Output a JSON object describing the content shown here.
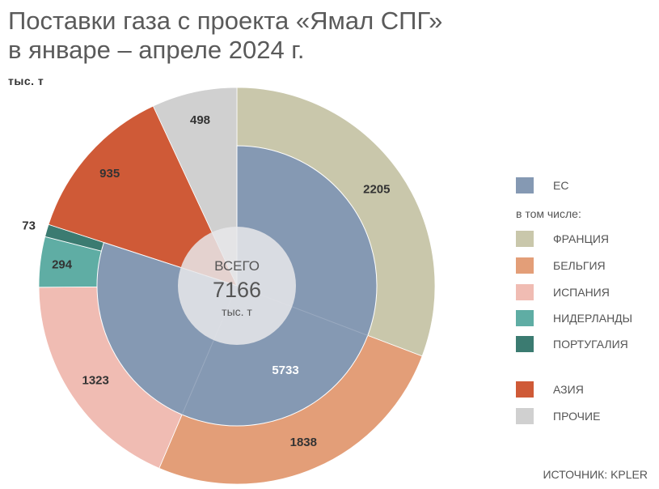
{
  "title_line1": "Поставки газа с проекта «Ямал СПГ»",
  "title_line2": "в январе – апреле 2024 г.",
  "unit": "тыс. т",
  "center": {
    "label_top": "ВСЕГО",
    "value": "7166",
    "label_bottom": "тыс. т"
  },
  "source": "ИСТОЧНИК: KPLER",
  "legend": {
    "eu": "ЕС",
    "subheading": "в том числе:",
    "items": [
      "ФРАНЦИЯ",
      "БЕЛЬГИЯ",
      "ИСПАНИЯ",
      "НИДЕРЛАНДЫ",
      "ПОРТУГАЛИЯ",
      "АЗИЯ",
      "ПРОЧИЕ"
    ]
  },
  "colors": {
    "eu": "#8599b3",
    "france": "#c9c7ab",
    "belgium": "#e39e78",
    "spain": "#f0bcb3",
    "netherlands": "#5fada4",
    "portugal": "#3b7b71",
    "asia": "#cf5a37",
    "other": "#d0d0d0",
    "center": "#e8e8ea"
  },
  "chart_data": {
    "type": "pie",
    "total": 7166,
    "inner": [
      {
        "name": "ЕС",
        "value": 5733,
        "color_key": "eu"
      }
    ],
    "outer": [
      {
        "name": "ФРАНЦИЯ",
        "value": 2205,
        "color_key": "france"
      },
      {
        "name": "БЕЛЬГИЯ",
        "value": 1838,
        "color_key": "belgium"
      },
      {
        "name": "ИСПАНИЯ",
        "value": 1323,
        "color_key": "spain"
      },
      {
        "name": "НИДЕРЛАНДЫ",
        "value": 294,
        "color_key": "netherlands"
      },
      {
        "name": "ПОРТУГАЛИЯ",
        "value": 73,
        "color_key": "portugal"
      },
      {
        "name": "АЗИЯ",
        "value": 935,
        "color_key": "asia"
      },
      {
        "name": "ПРОЧИЕ",
        "value": 498,
        "color_key": "other"
      }
    ]
  }
}
